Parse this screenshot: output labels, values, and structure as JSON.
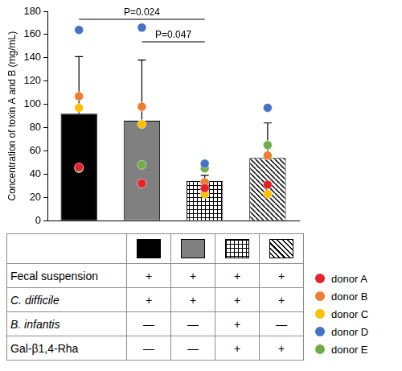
{
  "chart_data": {
    "type": "bar",
    "y_label": "Concentration of toxin A and B (mg/mL)",
    "categories": [
      null,
      null,
      null,
      null
    ],
    "values": [
      92,
      86,
      34,
      54
    ],
    "colors": [
      "#000000",
      "#808080",
      "#ffffff",
      "#ffffff"
    ],
    "error": [
      49,
      52,
      5,
      30
    ],
    "series": [
      {
        "name": "donor A",
        "color": "#e8202a",
        "type": "scatter",
        "values": [
          46,
          32,
          28,
          31
        ]
      },
      {
        "name": "donor B",
        "color": "#ed7d31",
        "type": "scatter",
        "values": [
          107,
          98,
          33,
          56
        ]
      },
      {
        "name": "donor C",
        "color": "#ffc000",
        "type": "scatter",
        "values": [
          97,
          83,
          23,
          23
        ]
      },
      {
        "name": "donor D",
        "color": "#4472c4",
        "type": "scatter",
        "values": [
          164,
          166,
          49,
          97
        ]
      },
      {
        "name": "donor E",
        "color": "#70ad47",
        "type": "scatter",
        "values": [
          45,
          48,
          45,
          65
        ]
      }
    ],
    "ylim": [
      0,
      180
    ],
    "yticks": [
      0,
      20,
      40,
      60,
      80,
      100,
      120,
      140,
      160,
      180
    ],
    "grid": false,
    "tick_labels": "y",
    "legend": "bottom right",
    "annotations": [
      {
        "text": "P=0.024",
        "from": 0,
        "to": 2
      },
      {
        "text": "P=0.047",
        "from": 1,
        "to": 2
      }
    ],
    "table": {
      "rows": [
        {
          "label": "Fecal suspension",
          "cells": [
            "+",
            "+",
            "+",
            "+"
          ]
        },
        {
          "label": "C. difficile",
          "cells": [
            "+",
            "+",
            "+",
            "+"
          ]
        },
        {
          "label": "B. infantis",
          "cells": [
            "—",
            "—",
            "+",
            "—"
          ]
        },
        {
          "label": "Gal-β1,4-Rha",
          "cells": [
            "—",
            "—",
            "+",
            "+"
          ]
        }
      ]
    }
  }
}
